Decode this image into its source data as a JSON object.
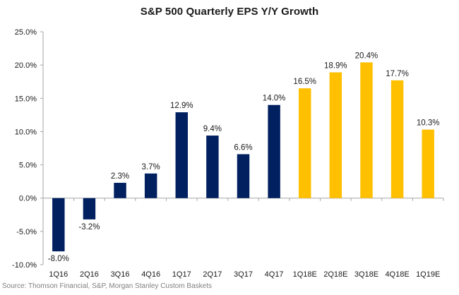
{
  "chart_data": {
    "type": "bar",
    "title": "S&P 500 Quarterly EPS Y/Y Growth",
    "xlabel": "",
    "ylabel": "",
    "categories": [
      "1Q16",
      "2Q16",
      "3Q16",
      "4Q16",
      "1Q17",
      "2Q17",
      "3Q17",
      "4Q17",
      "1Q18E",
      "2Q18E",
      "3Q18E",
      "4Q18E",
      "1Q19E"
    ],
    "values": [
      -8.0,
      -3.2,
      2.3,
      3.7,
      12.9,
      9.4,
      6.6,
      14.0,
      16.5,
      18.9,
      20.4,
      17.7,
      10.3
    ],
    "data_labels": [
      "-8.0%",
      "-3.2%",
      "2.3%",
      "3.7%",
      "12.9%",
      "9.4%",
      "6.6%",
      "14.0%",
      "16.5%",
      "18.9%",
      "20.4%",
      "17.7%",
      "10.3%"
    ],
    "series_type": [
      "actual",
      "actual",
      "actual",
      "actual",
      "actual",
      "actual",
      "actual",
      "actual",
      "estimate",
      "estimate",
      "estimate",
      "estimate",
      "estimate"
    ],
    "colors": {
      "actual": "#002060",
      "estimate": "#FFC000"
    },
    "ylim": [
      -10,
      25
    ],
    "yticks": [
      25,
      20,
      15,
      10,
      5,
      0,
      -5,
      -10
    ],
    "ytick_labels": [
      "25.0%",
      "20.0%",
      "15.0%",
      "10.0%",
      "5.0%",
      "0.0%",
      "-5.0%",
      "-10.0%"
    ],
    "grid": false,
    "legend": "none"
  },
  "source": "Source: Thomson Financial, S&P, Morgan Stanley Custom Baskets"
}
